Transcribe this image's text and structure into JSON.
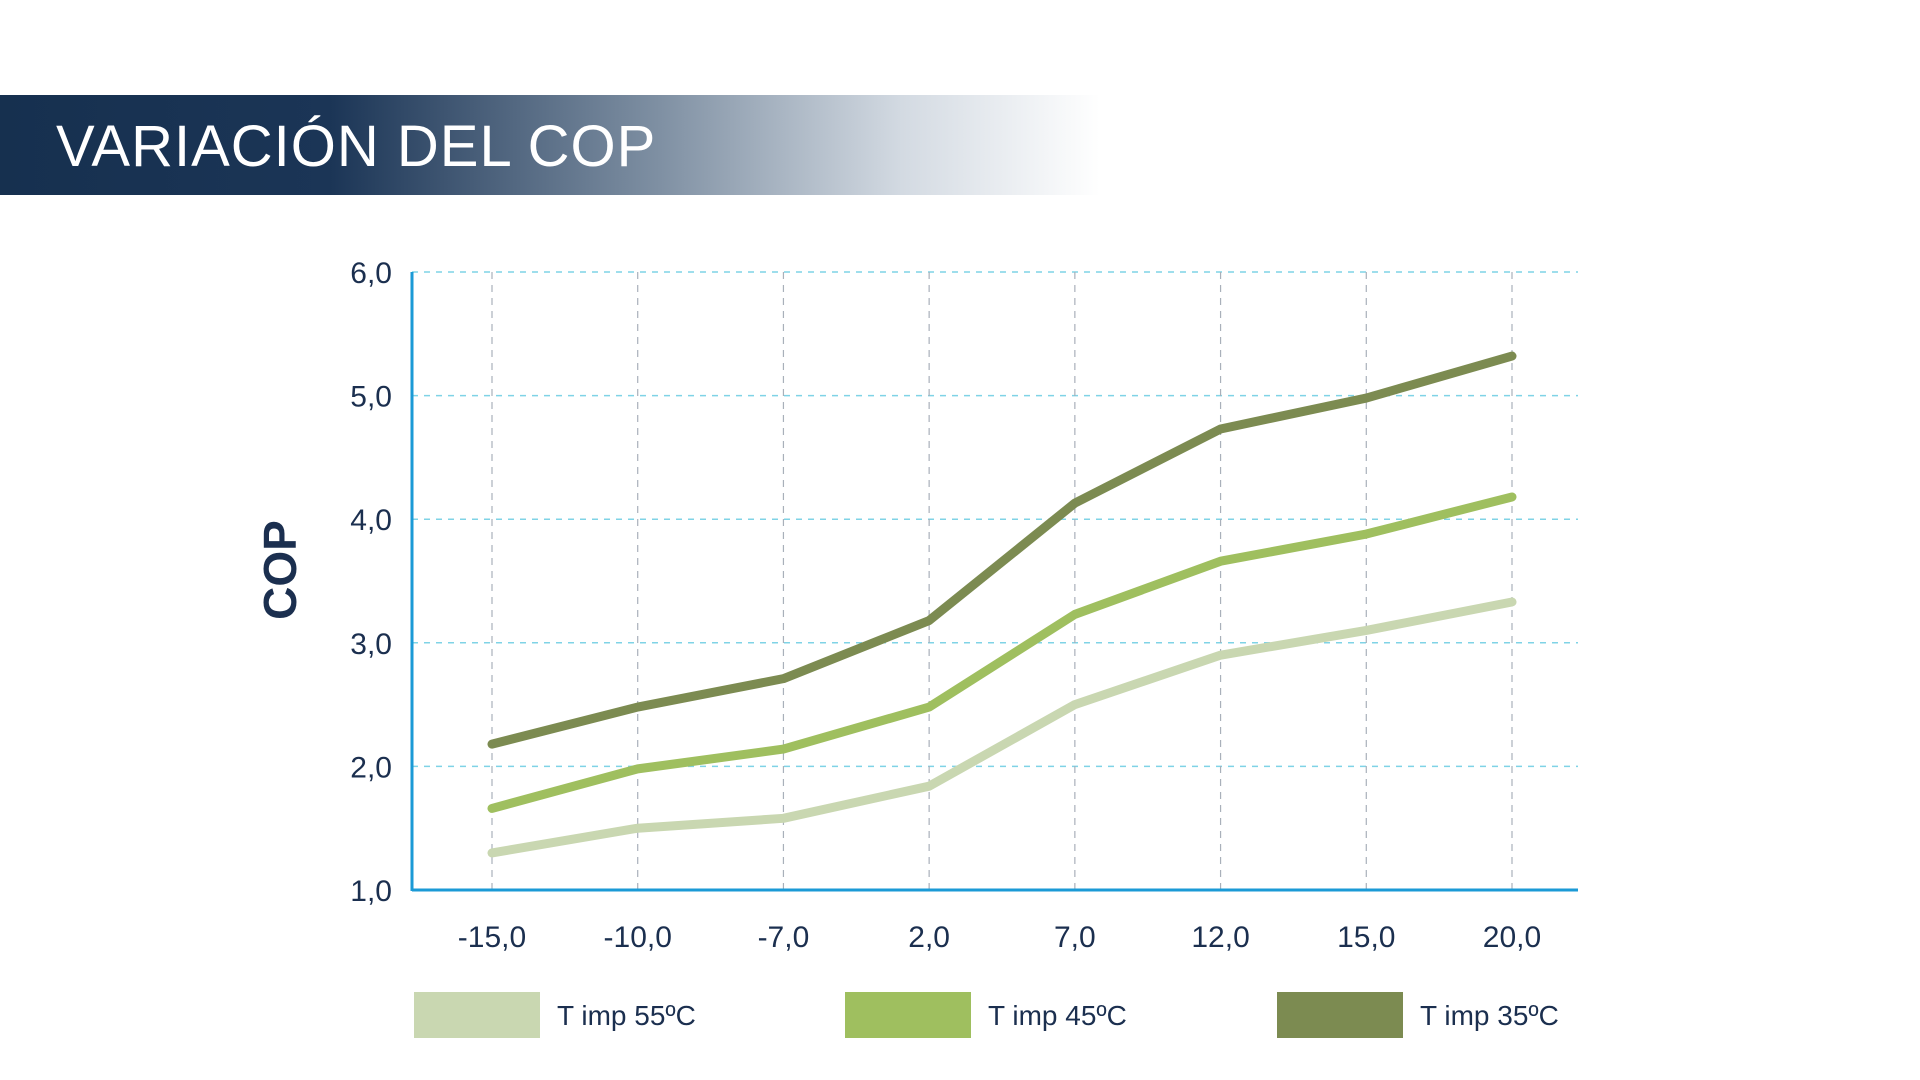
{
  "title": "VARIACIÓN DEL COP",
  "chart_data": {
    "type": "line",
    "categories": [
      "-15,0",
      "-10,0",
      "-7,0",
      "2,0",
      "7,0",
      "12,0",
      "15,0",
      "20,0"
    ],
    "ylabel": "COP",
    "xlabel": "",
    "ylim": [
      1.0,
      6.0
    ],
    "yticks": [
      "1,0",
      "2,0",
      "3,0",
      "4,0",
      "5,0",
      "6,0"
    ],
    "grid": true,
    "legend_position": "bottom",
    "series": [
      {
        "name": "T imp 55ºC",
        "color": "#c9d7b1",
        "values": [
          1.3,
          1.5,
          1.58,
          1.84,
          2.5,
          2.9,
          3.1,
          3.33
        ]
      },
      {
        "name": "T imp 45ºC",
        "color": "#9fbf5f",
        "values": [
          1.66,
          1.98,
          2.14,
          2.48,
          3.23,
          3.66,
          3.88,
          4.18
        ]
      },
      {
        "name": "T imp 35ºC",
        "color": "#7c8b51",
        "values": [
          2.18,
          2.48,
          2.71,
          3.18,
          4.13,
          4.73,
          4.98,
          5.32
        ]
      }
    ]
  }
}
